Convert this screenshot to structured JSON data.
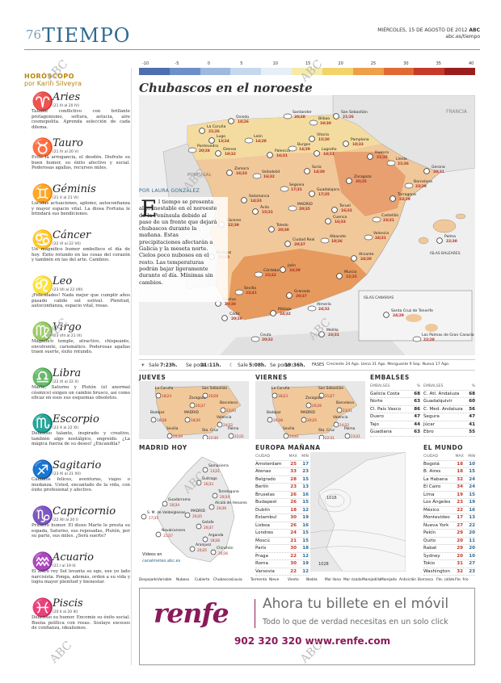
{
  "header": {
    "page_number": "76",
    "section_title": "TIEMPO",
    "date_line": "MIÉRCOLES, 15 DE AGOSTO DE 2012",
    "brand": "ABC",
    "url": "abc.es/tiempo"
  },
  "horoscope": {
    "heading": "HORÓSCOPO",
    "author": "por Karin Silveyra",
    "signs": [
      {
        "symbol": "♈",
        "name": "Aries",
        "dates": "(21 III al 20 IV)",
        "text": "Talante conflictivo con brillante protagonismo, soltura, astucia, aire cosmopolita. Aprenda selección de cada dilema."
      },
      {
        "symbol": "♉",
        "name": "Tauro",
        "dates": "(21 IV al 20 V)",
        "text": "Evite la arrogancia, el desdén. Disfrute su buen humor, su éxito afectivo y social. Poderosas agallas, recursos miles."
      },
      {
        "symbol": "♊",
        "name": "Géminis",
        "dates": "(21 V al 21 VI)",
        "text": "Lucidas actuaciones, aplomo, autoconfianza y mayor espacio vital. La diosa Fortuna le brindará sus bendiciones."
      },
      {
        "symbol": "♋",
        "name": "Cáncer",
        "dates": "(22 VI al 22 VII)",
        "text": "Un magnífico humor embellece el día de hoy. Éxito rotundo en las cosas del corazón y también en las del arte. Cambios."
      },
      {
        "symbol": "♌",
        "name": "Leo",
        "dates": "(23 VII al 22 VIII)",
        "text": "¡Felicidades! Nada mejor que cumplir años pasado calido sol estival. Plenitud, autoconfianza, espacio vital, rosas."
      },
      {
        "symbol": "♍",
        "name": "Virgo",
        "dates": "(23 VIII al 21 IX)",
        "text": "Magnífico temple, atractivo, chispeante, envolvente, carismático. Poderosas agallas traen suerte, éxito rotundo."
      },
      {
        "symbol": "♎",
        "name": "Libra",
        "dates": "(22 IX al 22 X)",
        "text": "Marte, Saturno y Plutón (el anormal cósmico) exigen un cambio brusco, así como eficaz en esos sus esquemas obsoletos."
      },
      {
        "symbol": "♏",
        "name": "Escorpio",
        "dates": "(23 X al 22 XI)",
        "text": "Delicioso talante, inspirado y creativo, también algo nostálgico, engreído. ¿La mágica fuerza de su deseo! ¿Encandila?"
      },
      {
        "symbol": "♐",
        "name": "Sagitario",
        "dates": "(23 XI al 21 XII)",
        "text": "Cambios felices, aventuras, viajes o mudanza. Usted, encantado de la vida, con éxito profesional y afectivo."
      },
      {
        "symbol": "♑",
        "name": "Capricornio",
        "dates": "(22 XII al 20 I)",
        "text": "Primero humor. El dioso Marte le presta su espada, Saturno, sus reposadas, Plutón, por su parte, sus miles. ¿Será suerte?"
      },
      {
        "symbol": "♒",
        "name": "Acuario",
        "dates": "(21 I al 19 II)",
        "text": "El astro rey Sol levanta su ego, ese yo lado narcisista. Ponga, además, orden a su vida y logra mayor plenitud y bienestar."
      },
      {
        "symbol": "♓",
        "name": "Piscis",
        "dates": "(20 II al 20 III)",
        "text": "Delicioso su humor. Encomie su éxito social. Buena política con rosas. Soslaye excesos de confianza, idealismos."
      }
    ]
  },
  "scale": {
    "ticks": [
      "-10",
      "-5",
      "0",
      "5",
      "10",
      "15",
      "20",
      "25",
      "30",
      "35",
      "40"
    ],
    "colors": [
      "#4d6fb0",
      "#6e8fc7",
      "#9fb8de",
      "#c5d8ee",
      "#e6eef7",
      "#f7e9a8",
      "#f3d36a",
      "#ee9f4a",
      "#e06a35",
      "#c53a2a",
      "#9b1e1e"
    ]
  },
  "forecast": {
    "headline": "Chubascos en el noroeste",
    "byline": "POR LAURA GONZÁLEZ",
    "dropcap": "E",
    "body": "l tiempo se presenta algo inestable en el noroeste de la Península debido al paso de un frente que dejará chubascos durante la mañana. Estas precipitaciones afectarán a Galicia y la meseta norte. Cielos poco nubosos en el resto. Las temperaturas podrán bajar ligeramente durante el día. Mínimas sin cambios."
  },
  "map": {
    "countries": {
      "francia": "FRANCIA",
      "portugal": "PORTUGAL",
      "baleares": "ISLAS BALEARES",
      "canarias": "ISLAS CANARIAS"
    },
    "cities": [
      {
        "name": "Santander",
        "temps": "20|28"
      },
      {
        "name": "Oviedo",
        "temps": "18|26"
      },
      {
        "name": "San Sebastián",
        "temps": "21|26"
      },
      {
        "name": "Bilbao",
        "temps": "19|30"
      },
      {
        "name": "La Coruña",
        "temps": "21|26"
      },
      {
        "name": "Lugo",
        "temps": "13|24"
      },
      {
        "name": "León",
        "temps": "14|28"
      },
      {
        "name": "Vitoria",
        "temps": "15|30"
      },
      {
        "name": "Pamplona",
        "temps": "18|33"
      },
      {
        "name": "Pontevedra",
        "temps": "20|28"
      },
      {
        "name": "Orense",
        "temps": "19|32"
      },
      {
        "name": "Palencia",
        "temps": "16|31"
      },
      {
        "name": "Burgos",
        "temps": "14|29"
      },
      {
        "name": "Logroño",
        "temps": "18|31"
      },
      {
        "name": "Huesca",
        "temps": "21|35"
      },
      {
        "name": "Lleida",
        "temps": "21|36"
      },
      {
        "name": "Gerona",
        "temps": "20|31"
      },
      {
        "name": "Zamora",
        "temps": "16|33"
      },
      {
        "name": "Valladolid",
        "temps": "16|32"
      },
      {
        "name": "Soria",
        "temps": "14|30"
      },
      {
        "name": "Zaragoza",
        "temps": "20|35"
      },
      {
        "name": "Barcelona",
        "temps": "23|29"
      },
      {
        "name": "Tarragona",
        "temps": "23|29"
      },
      {
        "name": "Salamanca",
        "temps": "14|33"
      },
      {
        "name": "Segovia",
        "temps": "17|31"
      },
      {
        "name": "Guadalajara",
        "temps": "17|35"
      },
      {
        "name": "Ávila",
        "temps": "15|31"
      },
      {
        "name": "MADRID",
        "temps": "20|35"
      },
      {
        "name": "Teruel",
        "temps": "16|32"
      },
      {
        "name": "Cuenca",
        "temps": "16|33"
      },
      {
        "name": "Castellón",
        "temps": "23|31"
      },
      {
        "name": "Cáceres",
        "temps": "22|39"
      },
      {
        "name": "Toledo",
        "temps": "20|38"
      },
      {
        "name": "Valencia",
        "temps": "24|31"
      },
      {
        "name": "Palma",
        "temps": "22|30"
      },
      {
        "name": "Ciudad Real",
        "temps": "20|37"
      },
      {
        "name": "Albacete",
        "temps": "18|36"
      },
      {
        "name": "Alicante",
        "temps": "24|30"
      },
      {
        "name": "Badajoz",
        "temps": "20|40"
      },
      {
        "name": "Córdoba",
        "temps": "23|42"
      },
      {
        "name": "Jaén",
        "temps": "24|39"
      },
      {
        "name": "Murcia",
        "temps": "22|35"
      },
      {
        "name": "Sevilla",
        "temps": "23|41"
      },
      {
        "name": "Huelva",
        "temps": "20|30"
      },
      {
        "name": "Granada",
        "temps": "20|37"
      },
      {
        "name": "Almería",
        "temps": "24|32"
      },
      {
        "name": "Cádiz",
        "temps": "20|29"
      },
      {
        "name": "Málaga",
        "temps": "24|32"
      },
      {
        "name": "Ceuta",
        "temps": "20|32"
      },
      {
        "name": "Melilla",
        "temps": "23|31"
      },
      {
        "name": "Santa Cruz de Tenerife",
        "temps": "24|29"
      },
      {
        "name": "Las Palmas de Gran Canaria",
        "temps": "22|28"
      }
    ]
  },
  "sunbar": {
    "sun_rise_label": "Sale",
    "sun_rise": "7:23h.",
    "sun_set_label": "Se pone",
    "sun_set": "21:11h.",
    "moon_rise_label": "Sale",
    "moon_rise": "5:08h.",
    "moon_set_label": "Se pone",
    "moon_set": "19:36h.",
    "phases_label": "FASES",
    "phases": "Creciente 24 Ago. Llena 31 Ago. Menguante 9 Sep. Nueva 17 Ago."
  },
  "jueves": {
    "title": "JUEVES",
    "cities": [
      {
        "name": "La Coruña",
        "temps": "18|24"
      },
      {
        "name": "San Sebastián",
        "temps": "20|28"
      },
      {
        "name": "Zaragoza",
        "temps": "20|37"
      },
      {
        "name": "Barcelona",
        "temps": "23|30"
      },
      {
        "name": "Badajoz",
        "temps": "18|38"
      },
      {
        "name": "MADRID",
        "temps": "18|36"
      },
      {
        "name": "Valencia",
        "temps": "24|32"
      },
      {
        "name": "Sevilla",
        "temps": "20|39"
      },
      {
        "name": "Sta. Cruz",
        "temps": "22|30"
      },
      {
        "name": "Palma",
        "temps": "22|31"
      }
    ]
  },
  "viernes": {
    "title": "VIERNES",
    "cities": [
      {
        "name": "La Coruña",
        "temps": "18|23"
      },
      {
        "name": "San Sebastián",
        "temps": "21|27"
      },
      {
        "name": "Zaragoza",
        "temps": "20|36"
      },
      {
        "name": "Barcelona",
        "temps": "23|31"
      },
      {
        "name": "Badajoz",
        "temps": "20|38"
      },
      {
        "name": "MADRID",
        "temps": "20|35"
      },
      {
        "name": "Valencia",
        "temps": "24|32"
      },
      {
        "name": "Sevilla",
        "temps": "24|41"
      },
      {
        "name": "Sta. Cruz",
        "temps": "22|31"
      },
      {
        "name": "Palma",
        "temps": "23|31"
      }
    ]
  },
  "embalses": {
    "title": "EMBALSES",
    "col_label": "%",
    "left": [
      {
        "name": "Galicia Costa",
        "v": "68"
      },
      {
        "name": "Norte",
        "v": "63"
      },
      {
        "name": "Cl. País Vasco",
        "v": "86"
      },
      {
        "name": "Duero",
        "v": "47"
      },
      {
        "name": "Tajo",
        "v": "44"
      },
      {
        "name": "Guadiana",
        "v": "63"
      }
    ],
    "right": [
      {
        "name": "C. Atl. Andaluza",
        "v": "68"
      },
      {
        "name": "Guadalquivir",
        "v": "60"
      },
      {
        "name": "C. Med. Andaluza",
        "v": "56"
      },
      {
        "name": "Segura",
        "v": "47"
      },
      {
        "name": "Júcar",
        "v": "41"
      },
      {
        "name": "Ebro",
        "v": "55"
      }
    ]
  },
  "madrid": {
    "title": "MADRID HOY",
    "footer": "Vídeos en",
    "footer2": "canalmeteo.abc.es",
    "cities": [
      {
        "name": "Somosierra",
        "temps": "13|31"
      },
      {
        "name": "Buitrago",
        "temps": "16|33"
      },
      {
        "name": "Torrelaguna",
        "temps": "20|34"
      },
      {
        "name": "Guadarrama",
        "temps": "20|34"
      },
      {
        "name": "Alcalá de Henares",
        "temps": "20|36"
      },
      {
        "name": "S. M. de Valdeiglesias",
        "temps": "17|33"
      },
      {
        "name": "MADRID",
        "temps": "20|35"
      },
      {
        "name": "Getafe",
        "temps": "20|37"
      },
      {
        "name": "Navalcarnero",
        "temps": "21|37"
      },
      {
        "name": "Arganda",
        "temps": "18|36"
      },
      {
        "name": "Aranjuez",
        "temps": "20|35"
      },
      {
        "name": "Chinchón",
        "temps": "20|36"
      }
    ]
  },
  "europa": {
    "title": "EUROPA MAÑANA",
    "col_city": "CIUDAD",
    "col_max": "MAX",
    "col_min": "MIN",
    "rows": [
      {
        "c": "Amsterdam",
        "max": "25",
        "min": "17"
      },
      {
        "c": "Atenas",
        "max": "33",
        "min": "23"
      },
      {
        "c": "Belgrado",
        "max": "28",
        "min": "15"
      },
      {
        "c": "Berlín",
        "max": "23",
        "min": "13"
      },
      {
        "c": "Bruselas",
        "max": "26",
        "min": "16"
      },
      {
        "c": "Budapest",
        "max": "26",
        "min": "15"
      },
      {
        "c": "Dublín",
        "max": "18",
        "min": "12"
      },
      {
        "c": "Estambul",
        "max": "30",
        "min": "19"
      },
      {
        "c": "Lisboa",
        "max": "26",
        "min": "16"
      },
      {
        "c": "Londres",
        "max": "24",
        "min": "15"
      },
      {
        "c": "Moscú",
        "max": "21",
        "min": "15"
      },
      {
        "c": "París",
        "max": "30",
        "min": "18"
      },
      {
        "c": "Praga",
        "max": "22",
        "min": "12"
      },
      {
        "c": "Roma",
        "max": "30",
        "min": "19"
      },
      {
        "c": "Varsovia",
        "max": "22",
        "min": "12"
      }
    ],
    "pressure_labels": [
      "1016",
      "1028"
    ]
  },
  "mundo": {
    "title": "EL MUNDO",
    "col_city": "CIUDAD",
    "col_max": "MAX",
    "col_min": "MIN",
    "rows": [
      {
        "c": "Bogotá",
        "max": "18",
        "min": "10"
      },
      {
        "c": "B. Aires",
        "max": "18",
        "min": "15"
      },
      {
        "c": "La Habana",
        "max": "32",
        "min": "24"
      },
      {
        "c": "El Cairo",
        "max": "34",
        "min": "24"
      },
      {
        "c": "Lima",
        "max": "19",
        "min": "15"
      },
      {
        "c": "Los Ángeles",
        "max": "23",
        "min": "19"
      },
      {
        "c": "México",
        "max": "22",
        "min": "16"
      },
      {
        "c": "Montevideo",
        "max": "17",
        "min": "13"
      },
      {
        "c": "Nueva York",
        "max": "27",
        "min": "22"
      },
      {
        "c": "Pekín",
        "max": "29",
        "min": "20"
      },
      {
        "c": "Quito",
        "max": "20",
        "min": "11"
      },
      {
        "c": "Rabat",
        "max": "29",
        "min": "20"
      },
      {
        "c": "Sydney",
        "max": "20",
        "min": "10"
      },
      {
        "c": "Tokio",
        "max": "31",
        "min": "27"
      },
      {
        "c": "Washington",
        "max": "32",
        "min": "23"
      }
    ]
  },
  "legend": [
    "Despejado",
    "Variable",
    "Nuboso",
    "Cubierto",
    "Chubascos",
    "Lluvia",
    "Tormenta",
    "Nieve",
    "Viento",
    "Niebla",
    "Mar llana",
    "Mar rizada",
    "Marejadilla",
    "Marejada",
    "Anticiclón",
    "Borrasca",
    "Fte. cálido",
    "Fte. frío"
  ],
  "ad": {
    "logo": "renfe",
    "line1": "Ahora tu billete en el móvil",
    "line2": "Todo lo que de verdad necesitas en un solo click",
    "line3": "902 320 320 www.renfe.com"
  },
  "watermark": "ABC"
}
